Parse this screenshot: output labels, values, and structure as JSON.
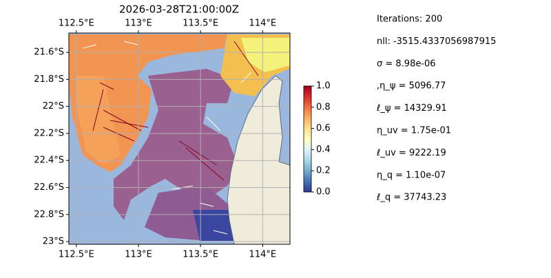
{
  "map": {
    "title": "2026-03-28T21:00:00Z",
    "lon_range": [
      112.44,
      114.22
    ],
    "lat_range": [
      -23.02,
      -21.457
    ],
    "lon_ticks": [
      {
        "value": 112.5,
        "label": "112.5°E"
      },
      {
        "value": 113,
        "label": "113°E"
      },
      {
        "value": 113.5,
        "label": "113.5°E"
      },
      {
        "value": 114,
        "label": "114°E"
      }
    ],
    "lat_ticks": [
      {
        "value": -21.6,
        "label": "21.6°S"
      },
      {
        "value": -21.8,
        "label": "21.8°S"
      },
      {
        "value": -22,
        "label": "22°S"
      },
      {
        "value": -22.2,
        "label": "22.2°S"
      },
      {
        "value": -22.4,
        "label": "22.4°S"
      },
      {
        "value": -22.6,
        "label": "22.6°S"
      },
      {
        "value": -22.8,
        "label": "22.8°S"
      },
      {
        "value": -23,
        "label": "23°S"
      }
    ],
    "colorbar": {
      "range": [
        0,
        1
      ],
      "ticks": [
        {
          "value": 0,
          "label": "0.0"
        },
        {
          "value": 0.2,
          "label": "0.2"
        },
        {
          "value": 0.4,
          "label": "0.4"
        },
        {
          "value": 0.6,
          "label": "0.6"
        },
        {
          "value": 0.8,
          "label": "0.8"
        },
        {
          "value": 1,
          "label": "1.0"
        }
      ]
    }
  },
  "info": [
    "Iterations: 200",
    "nll: -3515.4337056987915",
    "σ = 8.98e-06",
    ",η_ψ = 5096.77",
    "ℓ_ψ = 14329.91",
    "η_uv = 1.75e-01",
    "ℓ_uv = 9222.19",
    "η_q = 1.10e-07",
    "ℓ_q = 37743.23"
  ]
}
